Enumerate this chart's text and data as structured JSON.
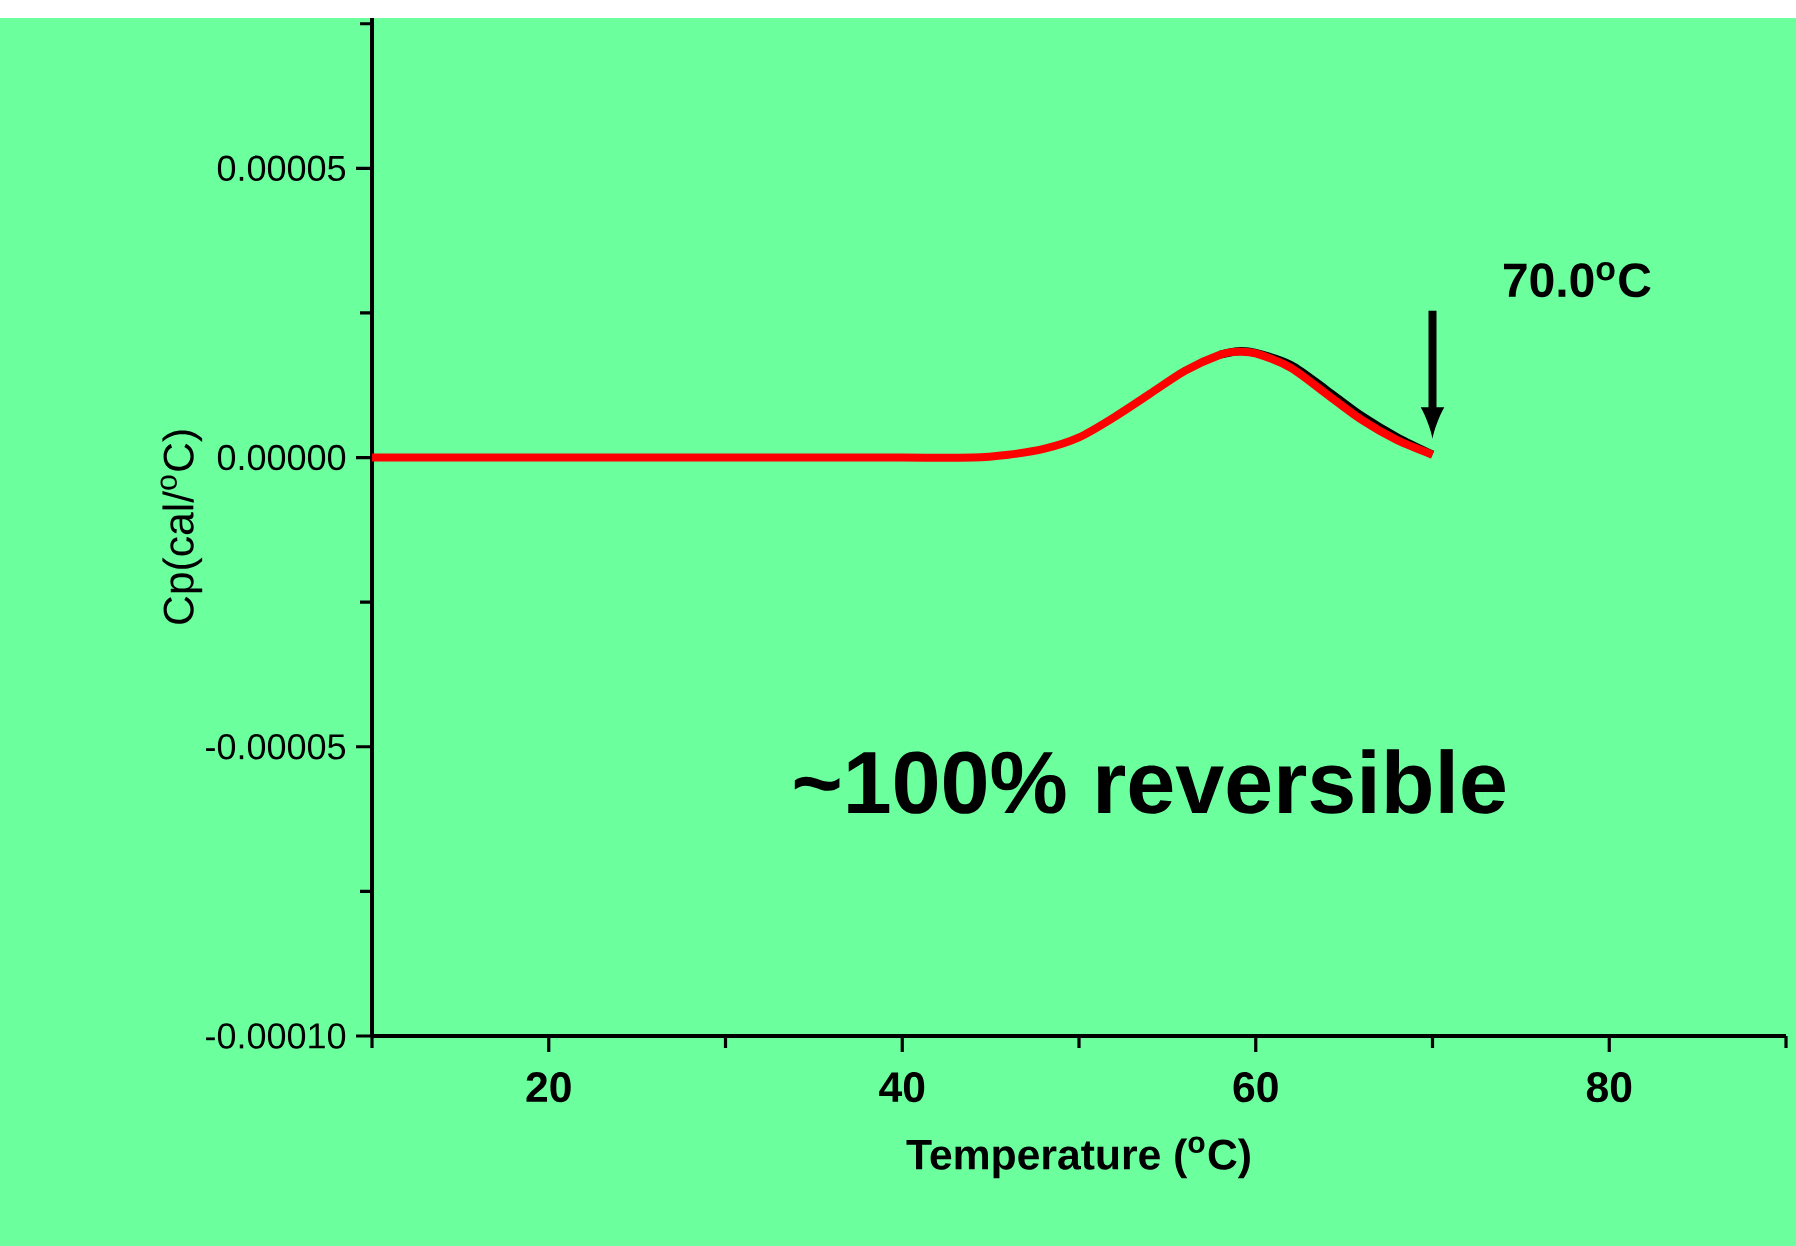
{
  "chart_data": {
    "type": "line",
    "xlabel": "Temperature ($^{o}$C)",
    "ylabel": "Cp(cal/$^{o}$C)",
    "x": [
      10,
      20,
      30,
      35,
      40,
      44,
      46,
      48,
      50,
      52,
      54,
      56,
      58,
      59,
      60,
      62,
      64,
      66,
      68,
      70
    ],
    "series": [
      {
        "color": "#000000",
        "values": [
          null,
          null,
          null,
          null,
          null,
          null,
          null,
          null,
          null,
          null,
          null,
          null,
          1.78e-05,
          1.84e-05,
          1.81e-05,
          1.6e-05,
          1.17e-05,
          7.2e-06,
          3.5e-06,
          5e-07
        ]
      },
      {
        "color": "#ff0000",
        "values": [
          0,
          0,
          0,
          0,
          0,
          0,
          5e-07,
          1.5e-06,
          3.5e-06,
          7e-06,
          1.1e-05,
          1.5e-05,
          1.78e-05,
          1.83e-05,
          1.8e-05,
          1.55e-05,
          1.1e-05,
          6.5e-06,
          3e-06,
          5e-07
        ]
      }
    ],
    "xlim": [
      10,
      90
    ],
    "ylim": [
      -0.0001,
      7.6e-05
    ],
    "xticks": [
      {
        "value": 10,
        "label": null
      },
      20,
      {
        "value": 30,
        "label": null
      },
      40,
      {
        "value": 50,
        "label": null
      },
      60,
      {
        "value": 70,
        "label": null
      },
      80,
      {
        "value": 90,
        "label": null
      }
    ],
    "yticks": [
      {
        "value": -0.0001,
        "label": "-0.00010"
      },
      {
        "value": -7.5e-05,
        "label": null
      },
      {
        "value": -5e-05,
        "label": "-0.00005"
      },
      {
        "value": -2.5e-05,
        "label": null
      },
      {
        "value": 0,
        "label": "0.00000"
      },
      {
        "value": 2.5e-05,
        "label": null
      },
      {
        "value": 5e-05,
        "label": "0.00005"
      },
      {
        "value": 7.5e-05,
        "label": null
      }
    ],
    "annotations": [
      "70.0$^{o}$C",
      "~100% reversible"
    ],
    "grid": false,
    "marker": "none",
    "line_style": "solid"
  }
}
